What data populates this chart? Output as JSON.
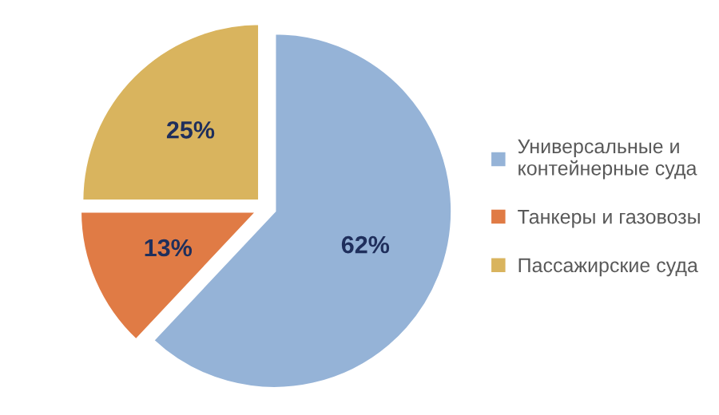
{
  "chart_data": {
    "type": "pie",
    "categories": [
      "Универсальные и\nконтейнерные суда",
      "Танкеры и газовозы",
      "Пассажирские суда"
    ],
    "values": [
      62,
      13,
      25
    ],
    "value_labels": [
      "62%",
      "13%",
      "25%"
    ],
    "colors": [
      "#95b3d7",
      "#e07b45",
      "#d9b45e"
    ],
    "legend": "right"
  }
}
